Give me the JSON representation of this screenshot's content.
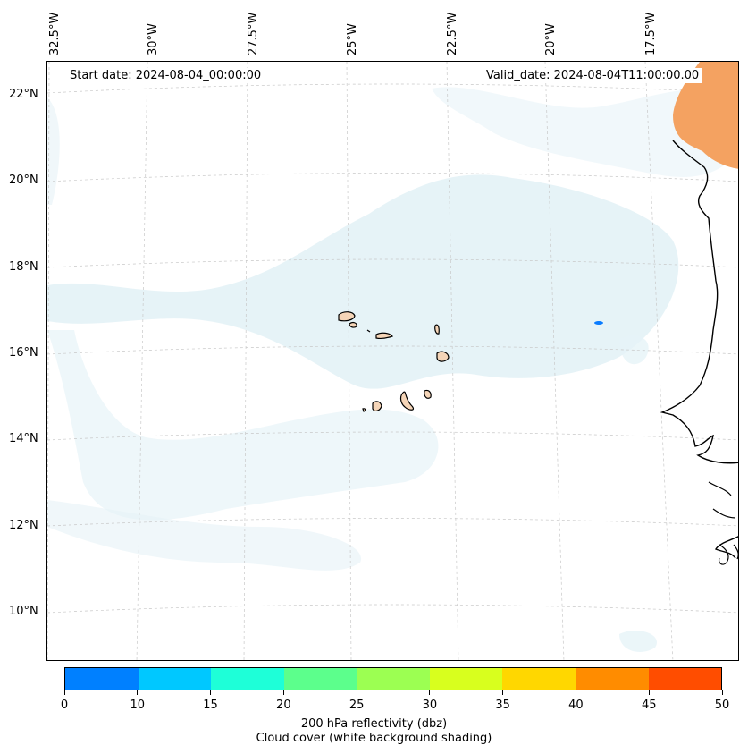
{
  "map": {
    "start_date": "Start date: 2024-08-04_00:00:00",
    "valid_date": "Valid_date: 2024-08-04T11:00:00.00",
    "longitude_labels": [
      "32.5°W",
      "30°W",
      "27.5°W",
      "25°W",
      "22.5°W",
      "20°W",
      "17.5°W"
    ],
    "latitude_labels": [
      "22°N",
      "20°N",
      "18°N",
      "16°N",
      "14°N",
      "12°N",
      "10°N"
    ],
    "land_color": "#f5d5b8",
    "cloud_color": "#d6ebf2",
    "reflectivity_colors": {
      "high": "#f4a261",
      "low": "#0a7cff"
    }
  },
  "colorbar": {
    "ticks": [
      "0",
      "10",
      "15",
      "20",
      "25",
      "30",
      "35",
      "40",
      "45",
      "50"
    ],
    "colors": [
      "#0080ff",
      "#00c8ff",
      "#1effd8",
      "#5cff8c",
      "#9cff52",
      "#d8ff1e",
      "#ffd700",
      "#ff8c00",
      "#ff4d00"
    ],
    "label": "200 hPa reflectivity (dbz)",
    "sublabel": "Cloud cover (white background shading)"
  }
}
